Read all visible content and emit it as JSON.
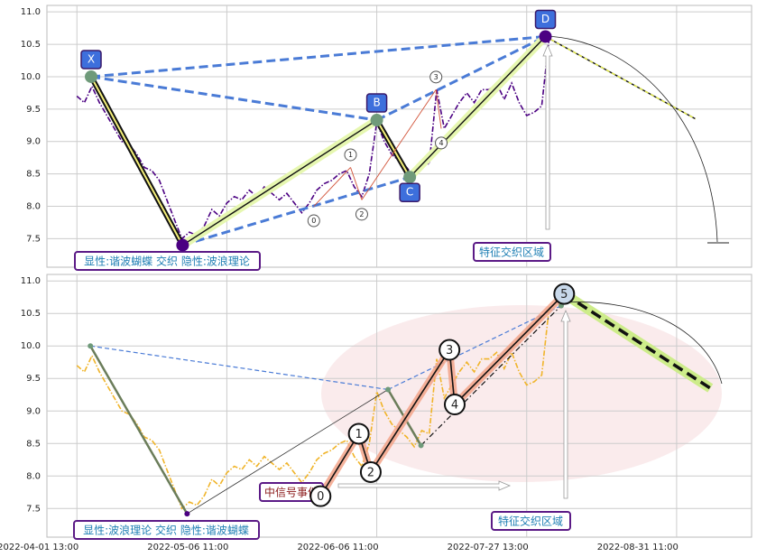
{
  "chart_data": [
    {
      "type": "line",
      "x": [
        4,
        5,
        6,
        7,
        8,
        9,
        10,
        11,
        12,
        13,
        14,
        15,
        16,
        17,
        18,
        19,
        20,
        21,
        22,
        23,
        24,
        25,
        26,
        27,
        28,
        29,
        30,
        31,
        32,
        33,
        34,
        35,
        36,
        37,
        38,
        39,
        40,
        41,
        42,
        43,
        44,
        45,
        46,
        47,
        48,
        49,
        50,
        51,
        52,
        53,
        54,
        55,
        56,
        57,
        58,
        59,
        60,
        61,
        62,
        63,
        64,
        65,
        66,
        67
      ],
      "series": [
        {
          "color": "#4b0082",
          "values": [
            9.7,
            9.6,
            9.85,
            9.6,
            9.4,
            9.2,
            9.0,
            8.95,
            8.8,
            8.6,
            8.55,
            8.4,
            8.1,
            7.8,
            7.5,
            7.6,
            7.55,
            7.7,
            7.95,
            7.85,
            8.05,
            8.15,
            8.1,
            8.25,
            8.15,
            8.3,
            8.2,
            8.1,
            8.2,
            8.05,
            7.9,
            8.05,
            8.25,
            8.35,
            8.4,
            8.5,
            8.55,
            8.3,
            8.15,
            8.5,
            9.3,
            9.0,
            8.8,
            8.7,
            8.6,
            8.45,
            8.7,
            8.65,
            9.8,
            9.2,
            9.4,
            9.6,
            9.75,
            9.6,
            9.8,
            9.8,
            9.9,
            9.65,
            9.9,
            9.6,
            9.4,
            9.45,
            9.55,
            10.6
          ]
        }
      ],
      "harmonic": {
        "x": [
          5.9,
          18.1,
          44.0,
          48.4,
          66.5
        ],
        "y": [
          10.0,
          7.4,
          9.33,
          8.45,
          10.62
        ],
        "labels": [
          "X",
          null,
          "B",
          "C",
          "D"
        ]
      },
      "waves": {
        "x": [
          35.6,
          40.5,
          42.0,
          51.9,
          52.6
        ],
        "y": [
          8.0,
          8.6,
          8.1,
          9.8,
          9.2
        ],
        "labels": [
          "0",
          "1",
          "2",
          "3",
          "4"
        ]
      },
      "projection": {
        "x": [
          66.5,
          86.5
        ],
        "y": [
          10.62,
          9.35
        ]
      },
      "annotations": [
        "显性:谐波蝴蝶 交织 隐性:波浪理论",
        "特征交织区域"
      ],
      "xlim": [
        0,
        94
      ],
      "xticks": [
        4,
        24,
        44,
        64,
        84
      ],
      "ylim": [
        7.06,
        11.1
      ],
      "yticks": [
        7.5,
        {
          "value": 8,
          "label": "8.0"
        },
        8.5,
        {
          "value": 9,
          "label": "9.0"
        },
        9.5,
        {
          "value": 10,
          "label": "10.0"
        },
        10.5,
        {
          "value": 11,
          "label": "11.0"
        }
      ],
      "grid": true
    },
    {
      "type": "line",
      "x": [
        4,
        5,
        6,
        7,
        8,
        9,
        10,
        11,
        12,
        13,
        14,
        15,
        16,
        17,
        18,
        19,
        20,
        21,
        22,
        23,
        24,
        25,
        26,
        27,
        28,
        29,
        30,
        31,
        32,
        33,
        34,
        35,
        36,
        37,
        38,
        39,
        40,
        41,
        42,
        43,
        44,
        45,
        46,
        47,
        48,
        49,
        50,
        51,
        52,
        53,
        54,
        55,
        56,
        57,
        58,
        59,
        60,
        61,
        62,
        63,
        64,
        65,
        66,
        67
      ],
      "series": [
        {
          "color": "#f0b429",
          "values": [
            9.7,
            9.6,
            9.85,
            9.6,
            9.4,
            9.2,
            9.0,
            8.95,
            8.8,
            8.6,
            8.55,
            8.4,
            8.1,
            7.8,
            7.5,
            7.6,
            7.55,
            7.7,
            7.95,
            7.85,
            8.05,
            8.15,
            8.1,
            8.25,
            8.15,
            8.3,
            8.2,
            8.1,
            8.2,
            8.05,
            7.9,
            8.05,
            8.25,
            8.35,
            8.4,
            8.5,
            8.55,
            8.3,
            8.15,
            8.5,
            9.3,
            9.0,
            8.8,
            8.7,
            8.6,
            8.45,
            8.7,
            8.65,
            9.8,
            9.2,
            9.4,
            9.6,
            9.75,
            9.6,
            9.8,
            9.8,
            9.9,
            9.65,
            9.9,
            9.6,
            9.4,
            9.45,
            9.55,
            10.6
          ]
        }
      ],
      "harmonic": {
        "x": [
          5.8,
          18.7,
          45.5,
          49.9,
          68.6
        ],
        "y": [
          10.0,
          7.42,
          9.33,
          8.47,
          10.62
        ]
      },
      "waves": {
        "x": [
          36.5,
          41.6,
          43.2,
          53.7,
          54.4,
          69.0
        ],
        "y": [
          7.69,
          8.65,
          8.06,
          9.94,
          9.1,
          10.8
        ],
        "labels": [
          "0",
          "1",
          "2",
          "3",
          "4",
          "5"
        ]
      },
      "projection": {
        "x": [
          69.0,
          88.5
        ],
        "y": [
          10.8,
          9.35
        ]
      },
      "annotations": [
        "显性:波浪理论 交织 隐性:谐波蝴蝶",
        "特征交织区域",
        "中信号事件"
      ],
      "xlim": [
        0,
        94
      ],
      "xticks": [
        {
          "value": 4,
          "label": "2022-04-01 13:00"
        },
        {
          "value": 24,
          "label": "2022-05-06 11:00"
        },
        {
          "value": 44,
          "label": "2022-06-06 11:00"
        },
        {
          "value": 64,
          "label": "2022-07-27 13:00"
        },
        {
          "value": 84,
          "label": "2022-08-31 11:00"
        }
      ],
      "ylim": [
        7.06,
        11.1
      ],
      "yticks": [
        7.5,
        {
          "value": 8,
          "label": "8.0"
        },
        8.5,
        {
          "value": 9,
          "label": "9.0"
        },
        9.5,
        {
          "value": 10,
          "label": "10.0"
        },
        10.5,
        {
          "value": 11,
          "label": "11.0"
        }
      ],
      "grid": true
    }
  ]
}
